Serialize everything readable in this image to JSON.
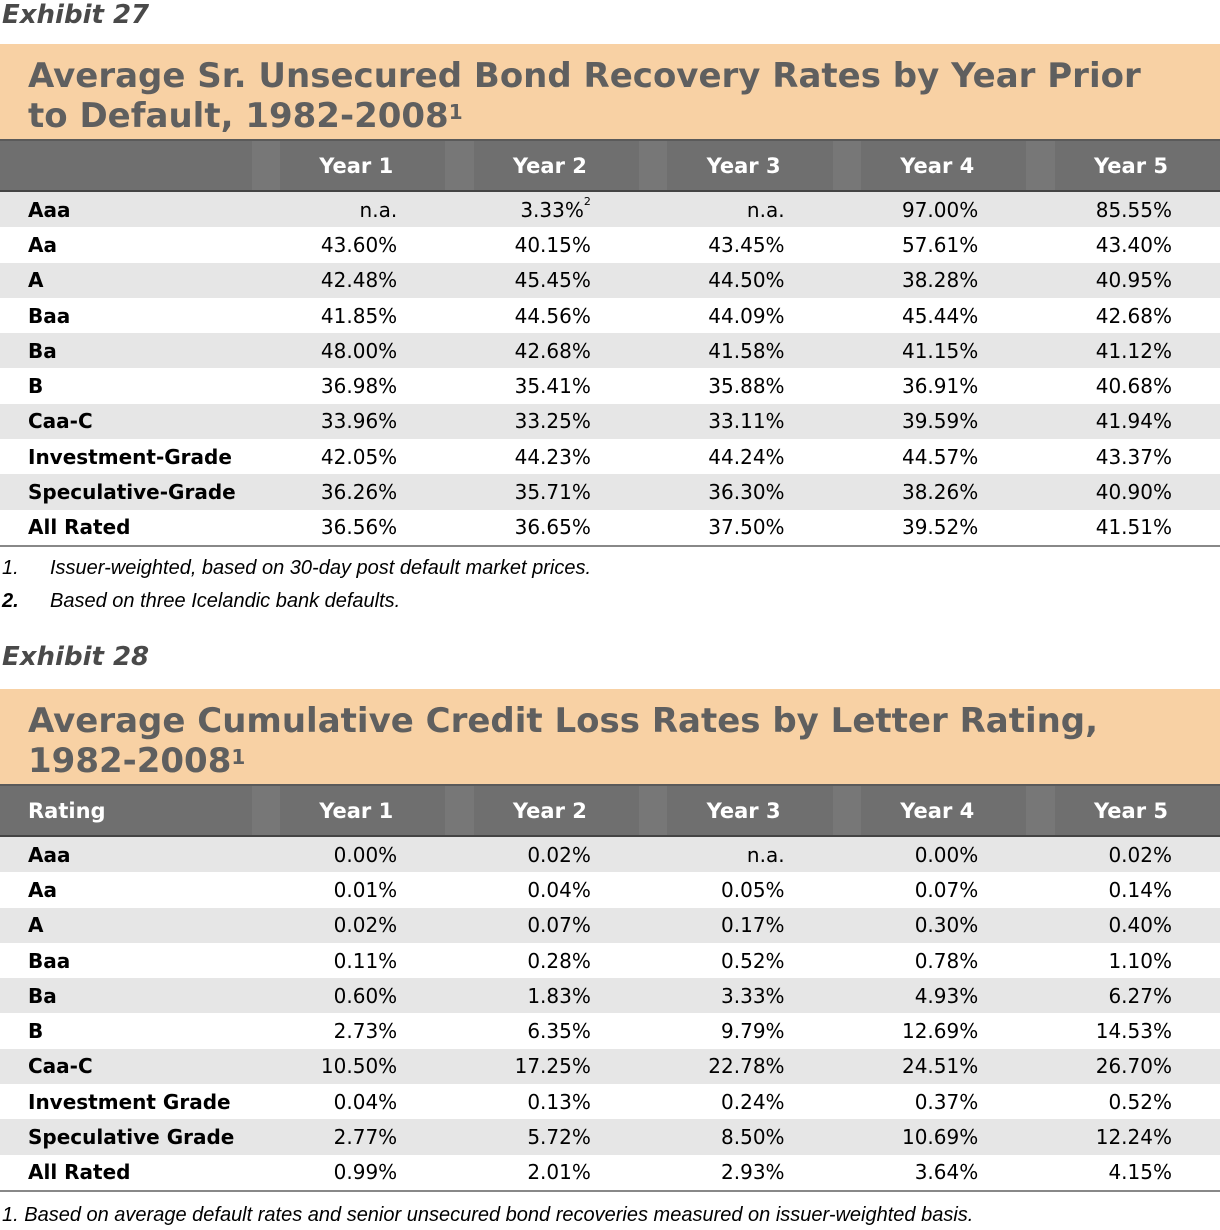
{
  "exhibit27": {
    "label": "Exhibit 27",
    "title": "Average Sr. Unsecured Bond Recovery Rates by Year Prior to Default, 1982-2008",
    "title_sup": "1",
    "headers": [
      "",
      "Year 1",
      "Year 2",
      "Year 3",
      "Year 4",
      "Year 5"
    ],
    "rows": [
      {
        "label": "Aaa",
        "values": [
          "n.a.",
          "3.33%",
          "n.a.",
          "97.00%",
          "85.55%"
        ],
        "note_col": 1,
        "note": "2"
      },
      {
        "label": "Aa",
        "values": [
          "43.60%",
          "40.15%",
          "43.45%",
          "57.61%",
          "43.40%"
        ]
      },
      {
        "label": "A",
        "values": [
          "42.48%",
          "45.45%",
          "44.50%",
          "38.28%",
          "40.95%"
        ]
      },
      {
        "label": "Baa",
        "values": [
          "41.85%",
          "44.56%",
          "44.09%",
          "45.44%",
          "42.68%"
        ]
      },
      {
        "label": "Ba",
        "values": [
          "48.00%",
          "42.68%",
          "41.58%",
          "41.15%",
          "41.12%"
        ]
      },
      {
        "label": "B",
        "values": [
          "36.98%",
          "35.41%",
          "35.88%",
          "36.91%",
          "40.68%"
        ]
      },
      {
        "label": "Caa-C",
        "values": [
          "33.96%",
          "33.25%",
          "33.11%",
          "39.59%",
          "41.94%"
        ]
      },
      {
        "label": "Investment-Grade",
        "values": [
          "42.05%",
          "44.23%",
          "44.24%",
          "44.57%",
          "43.37%"
        ]
      },
      {
        "label": "Speculative-Grade",
        "values": [
          "36.26%",
          "35.71%",
          "36.30%",
          "38.26%",
          "40.90%"
        ]
      },
      {
        "label": "All Rated",
        "values": [
          "36.56%",
          "36.65%",
          "37.50%",
          "39.52%",
          "41.51%"
        ]
      }
    ],
    "footnotes": [
      {
        "num": "1.",
        "text": "Issuer-weighted, based on 30-day post default market prices."
      },
      {
        "num": "2.",
        "text": "Based on three Icelandic bank defaults."
      }
    ]
  },
  "exhibit28": {
    "label": "Exhibit 28",
    "title": "Average Cumulative Credit Loss Rates by Letter Rating, 1982-2008",
    "title_sup": "1",
    "headers": [
      "Rating",
      "Year 1",
      "Year 2",
      "Year 3",
      "Year 4",
      "Year 5"
    ],
    "rows": [
      {
        "label": "Aaa",
        "values": [
          "0.00%",
          "0.02%",
          "n.a.",
          "0.00%",
          "0.02%"
        ]
      },
      {
        "label": "Aa",
        "values": [
          "0.01%",
          "0.04%",
          "0.05%",
          "0.07%",
          "0.14%"
        ]
      },
      {
        "label": "A",
        "values": [
          "0.02%",
          "0.07%",
          "0.17%",
          "0.30%",
          "0.40%"
        ]
      },
      {
        "label": "Baa",
        "values": [
          "0.11%",
          "0.28%",
          "0.52%",
          "0.78%",
          "1.10%"
        ]
      },
      {
        "label": "Ba",
        "values": [
          "0.60%",
          "1.83%",
          "3.33%",
          "4.93%",
          "6.27%"
        ]
      },
      {
        "label": "B",
        "values": [
          "2.73%",
          "6.35%",
          "9.79%",
          "12.69%",
          "14.53%"
        ]
      },
      {
        "label": "Caa-C",
        "values": [
          "10.50%",
          "17.25%",
          "22.78%",
          "24.51%",
          "26.70%"
        ]
      },
      {
        "label": "Investment Grade",
        "values": [
          "0.04%",
          "0.13%",
          "0.24%",
          "0.37%",
          "0.52%"
        ]
      },
      {
        "label": "Speculative Grade",
        "values": [
          "2.77%",
          "5.72%",
          "8.50%",
          "10.69%",
          "12.24%"
        ]
      },
      {
        "label": "All Rated",
        "values": [
          "0.99%",
          "2.01%",
          "2.93%",
          "3.64%",
          "4.15%"
        ]
      }
    ],
    "footnote": "1. Based on average default rates and senior unsecured bond recoveries measured on issuer-weighted basis."
  }
}
